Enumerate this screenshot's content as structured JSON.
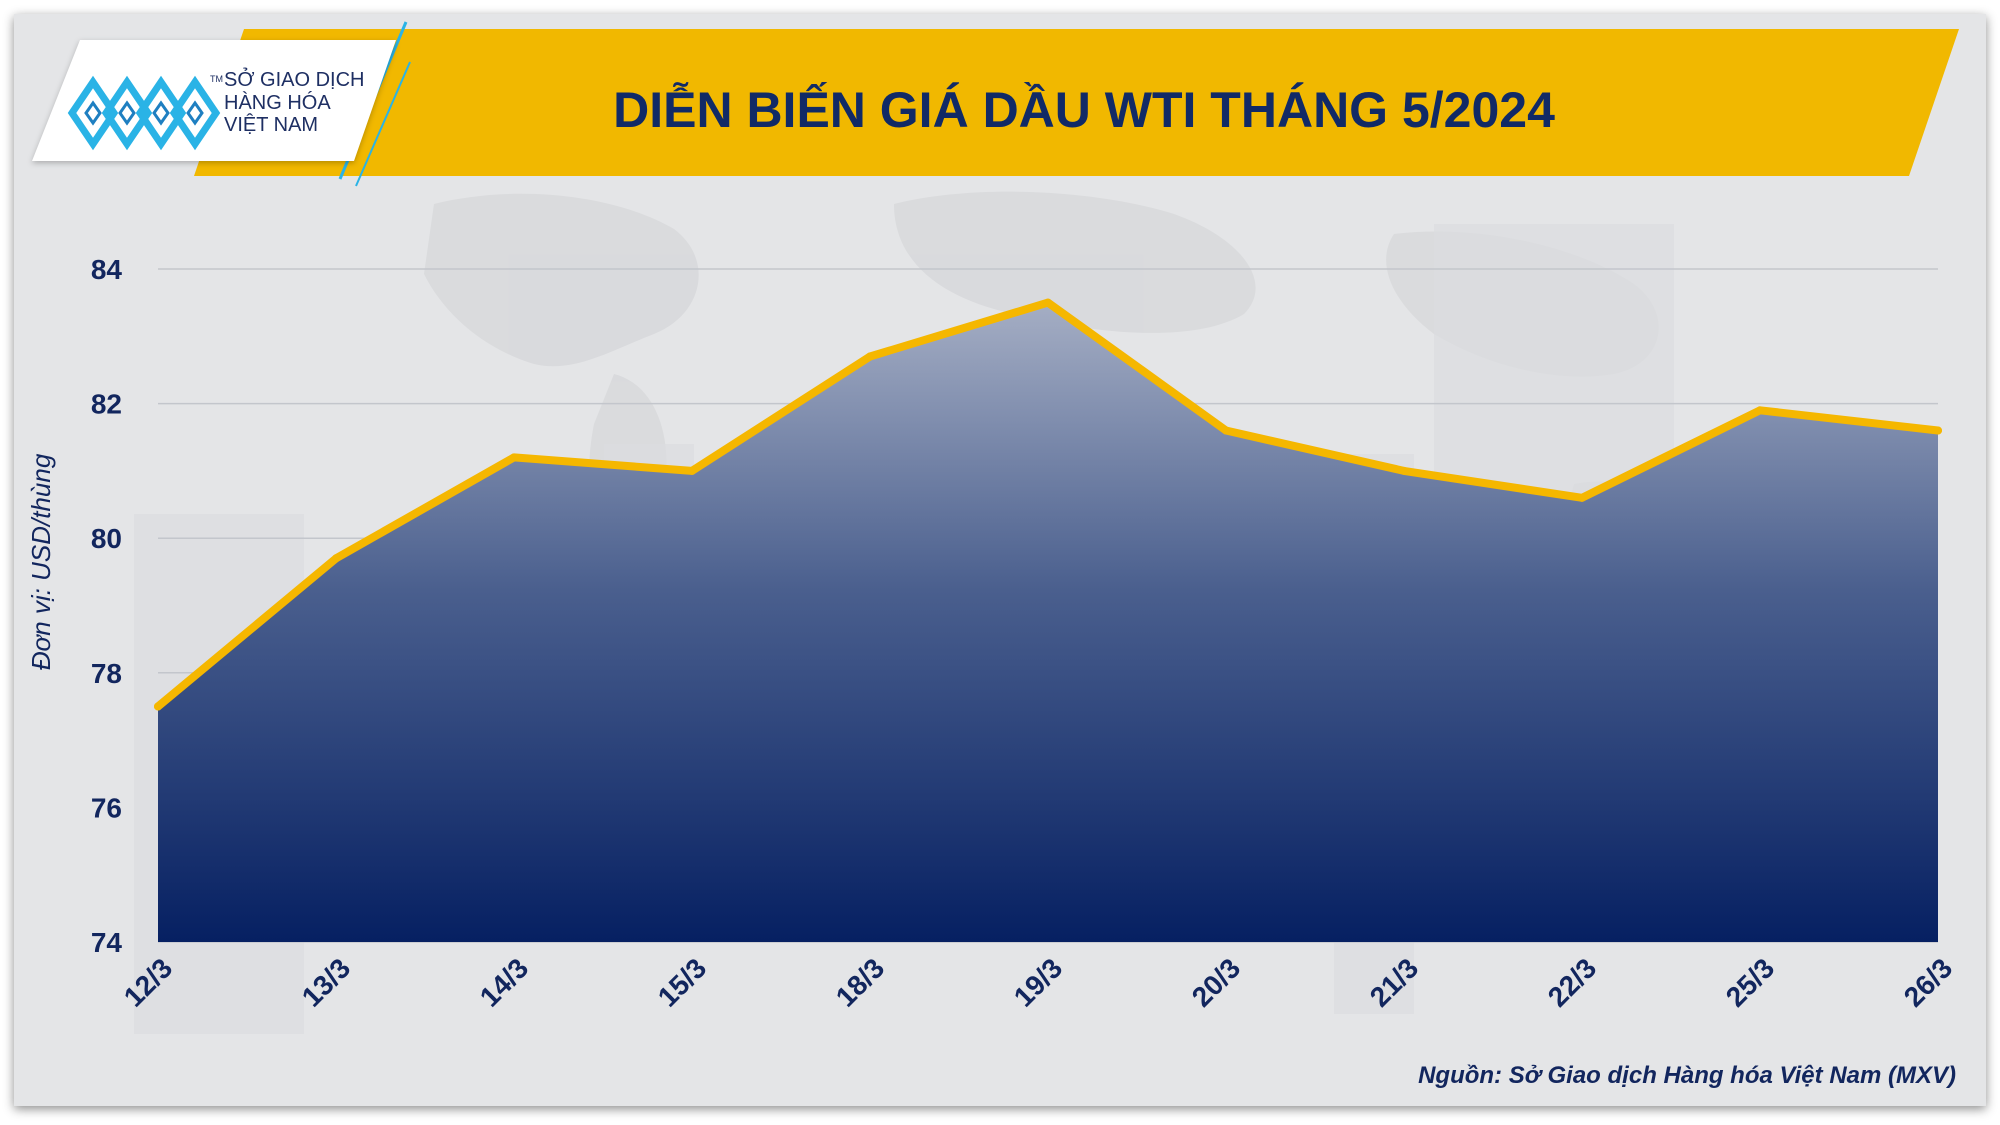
{
  "header": {
    "title": "DIỄN BIẾN GIÁ DẦU WTI THÁNG 5/2024",
    "band_color": "#f1b800",
    "title_color": "#112a66"
  },
  "logo": {
    "line1": "SỞ GIAO DỊCH",
    "line2": "HÀNG HÓA",
    "line3": "VIỆT NAM",
    "tm": "TM",
    "icon": "mxv-logo-icon",
    "accent_color": "#2ab3e6"
  },
  "source": "Nguồn: Sở Giao dịch Hàng hóa Việt Nam (MXV)",
  "chart_data": {
    "type": "area",
    "title": "DIỄN BIẾN GIÁ DẦU WTI THÁNG 5/2024",
    "xlabel": "",
    "ylabel": "Đơn vị: USD/thùng",
    "categories": [
      "12/3",
      "13/3",
      "14/3",
      "15/3",
      "18/3",
      "19/3",
      "20/3",
      "21/3",
      "22/3",
      "25/3",
      "26/3"
    ],
    "series": [
      {
        "values": [
          77.5,
          79.7,
          81.2,
          81.0,
          82.7,
          83.5,
          81.6,
          81.0,
          80.6,
          81.9,
          81.6
        ]
      }
    ],
    "ylim": [
      74,
      84
    ],
    "yticks": [
      74,
      76,
      78,
      80,
      82,
      84
    ],
    "grid": true,
    "line_color": "#f5b700",
    "fill_top_color": "#a5aec4",
    "fill_bottom_color": "#062062"
  }
}
